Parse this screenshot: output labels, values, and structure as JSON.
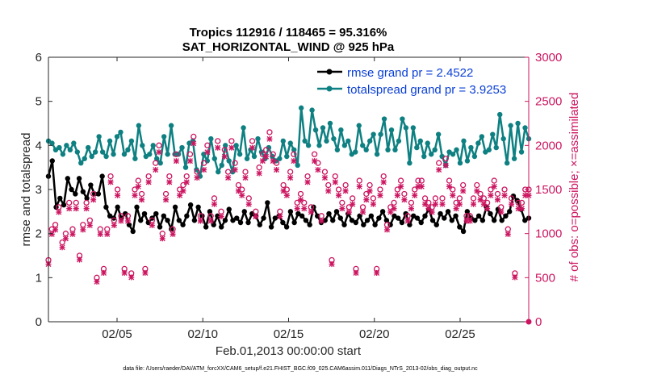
{
  "chart_data": {
    "type": "line",
    "title": [
      "Tropics 112916 / 118465 = 95.316%",
      "SAT_HORIZONTAL_WIND @ 925 hPa"
    ],
    "xlabel": "Feb.01,2013 00:00:00 start",
    "ylabel_left": "rmse and totalspread",
    "ylabel_right": "# of obs: o=possible; ×=assimilated",
    "xlim": [
      1,
      29
    ],
    "ylim_left": [
      0,
      6
    ],
    "ylim_right": [
      0,
      3000
    ],
    "x_ticks": [
      5,
      10,
      15,
      20,
      25
    ],
    "x_tick_labels": [
      "02/05",
      "02/10",
      "02/15",
      "02/20",
      "02/25"
    ],
    "y_left_ticks": [
      "0",
      "1",
      "2",
      "3",
      "4",
      "5",
      "6"
    ],
    "y_right_ticks": [
      "0",
      "500",
      "1000",
      "1500",
      "2000",
      "2500",
      "3000"
    ],
    "footnote": "data file: /Users/raeder/DAI/ATM_forcXX/CAM6_setup/f.e21.FHIST_BGC.f09_025.CAM6assim.011/Diags_NTrS_2013-02/obs_diag_output.nc",
    "colors": {
      "rmse": "#000000",
      "spread": "#0f8082",
      "obs": "#cc1560",
      "legend_text": "#0a3fd6"
    },
    "series": [
      {
        "name": "rmse grand pr = 2.4522",
        "axis": "left",
        "values": [
          3.3,
          3.65,
          2.6,
          2.8,
          2.65,
          3.25,
          3.0,
          2.9,
          3.25,
          2.95,
          2.8,
          3.1,
          2.9,
          2.9,
          3.3,
          2.6,
          2.4,
          2.35,
          2.6,
          2.35,
          2.45,
          2.2,
          2.05,
          2.6,
          2.3,
          2.45,
          2.25,
          2.35,
          2.45,
          2.15,
          2.4,
          2.3,
          2.1,
          2.6,
          2.3,
          2.2,
          2.4,
          2.65,
          2.3,
          2.6,
          2.4,
          2.15,
          2.5,
          2.2,
          2.4,
          2.15,
          2.3,
          2.55,
          2.3,
          2.35,
          2.25,
          2.5,
          2.25,
          2.45,
          2.4,
          2.2,
          2.35,
          2.7,
          2.15,
          2.35,
          2.4,
          2.25,
          2.15,
          2.5,
          2.25,
          2.45,
          2.4,
          2.3,
          2.2,
          2.6,
          2.4,
          2.25,
          2.3,
          2.45,
          2.3,
          2.5,
          2.35,
          2.2,
          2.45,
          2.3,
          2.25,
          2.4,
          2.2,
          2.3,
          2.4,
          2.2,
          2.35,
          2.5,
          2.3,
          2.2,
          2.4,
          2.35,
          2.25,
          2.45,
          2.2,
          2.4,
          2.35,
          2.25,
          2.4,
          2.55,
          2.3,
          2.2,
          2.45,
          2.35,
          2.5,
          2.3,
          2.4,
          2.15,
          2.05,
          2.5,
          2.35,
          2.3,
          2.4,
          2.3,
          2.6,
          2.45,
          2.3,
          2.55,
          2.3,
          2.4,
          2.5,
          2.85,
          2.75,
          2.55,
          2.3,
          2.35
        ]
      },
      {
        "name": "totalspread grand pr = 3.9253",
        "axis": "left",
        "values": [
          4.1,
          4.05,
          3.9,
          3.95,
          3.8,
          4.0,
          3.9,
          4.05,
          3.85,
          3.6,
          3.7,
          3.95,
          3.75,
          3.85,
          4.2,
          3.85,
          3.75,
          4.1,
          3.8,
          4.2,
          4.3,
          3.8,
          3.9,
          4.1,
          3.7,
          4.45,
          4.0,
          3.75,
          3.8,
          4.0,
          3.7,
          3.6,
          4.2,
          3.8,
          4.45,
          3.8,
          3.8,
          3.95,
          3.5,
          4.05,
          4.1,
          3.45,
          3.3,
          3.8,
          3.65,
          4.15,
          3.7,
          3.4,
          3.55,
          4.0,
          3.65,
          3.4,
          4.0,
          3.8,
          4.4,
          3.7,
          3.9,
          3.75,
          4.15,
          3.85,
          3.7,
          3.95,
          3.75,
          3.65,
          3.7,
          4.1,
          3.75,
          4.05,
          3.9,
          3.55,
          4.85,
          4.1,
          4.0,
          4.8,
          4.35,
          4.0,
          4.4,
          4.1,
          4.5,
          4.15,
          3.9,
          4.35,
          4.0,
          4.1,
          3.8,
          3.85,
          4.45,
          4.0,
          3.9,
          4.1,
          4.25,
          3.8,
          4.25,
          4.6,
          3.9,
          4.35,
          3.9,
          4.1,
          4.6,
          4.4,
          3.6,
          4.4,
          3.95,
          4.1,
          3.75,
          4.05,
          3.8,
          3.9,
          4.25,
          3.75,
          3.55,
          3.85,
          3.8,
          3.9,
          3.6,
          4.1,
          3.65,
          3.95,
          3.75,
          4.05,
          4.2,
          3.85,
          3.9,
          4.25,
          3.95,
          4.7,
          4.15,
          3.6,
          4.45,
          3.7,
          4.5,
          3.85,
          4.4,
          4.15
        ]
      },
      {
        "name": "possible",
        "axis": "right",
        "marker": "o",
        "values": [
          700,
          1050,
          1100,
          1300,
          900,
          1000,
          1350,
          1050,
          1350,
          750,
          1100,
          1350,
          1150,
          1450,
          500,
          1050,
          600,
          1050,
          1650,
          1150,
          1500,
          1200,
          600,
          1200,
          550,
          1500,
          1600,
          1450,
          600,
          1650,
          1150,
          1800,
          2000,
          1000,
          1450,
          1650,
          1050,
          1900,
          1500,
          1550,
          1650,
          1900,
          2100,
          1700,
          1200,
          1800,
          2000,
          1200,
          1400,
          2050,
          1250,
          1950,
          1700,
          2050,
          1800,
          1550,
          1500,
          1700,
          1400,
          2050,
          1250,
          1750,
          1900,
          1950,
          2150,
          1900,
          1800,
          1250,
          1550,
          1500,
          1700,
          1900,
          1350,
          1450,
          1350,
          1650,
          1300,
          1900,
          1800,
          1200,
          1700,
          1550,
          700,
          1650,
          1500,
          1350,
          1550,
          1300,
          1400,
          600,
          1600,
          1300,
          1450,
          1550,
          1400,
          600,
          1500,
          1650,
          1100,
          1300,
          1350,
          1500,
          1600,
          1450,
          1200,
          1350,
          1500,
          1600,
          1600,
          1400,
          1350,
          1300,
          1400,
          1800,
          1400,
          1850,
          1600,
          1500,
          1350,
          1400,
          1550,
          1200,
          1200,
          1400,
          1550,
          1450,
          1400,
          1350,
          1500,
          1600,
          1450,
          1300,
          1500,
          1050,
          1400,
          550,
          1350,
          1350,
          1500,
          1500
        ]
      },
      {
        "name": "assimilated",
        "axis": "right",
        "marker": "x",
        "values": [
          690,
          1030,
          1080,
          1280,
          880,
          980,
          1320,
          1030,
          1320,
          740,
          1080,
          1320,
          1130,
          1420,
          490,
          1030,
          590,
          1030,
          1620,
          1130,
          1470,
          1180,
          590,
          1180,
          540,
          1470,
          1570,
          1420,
          590,
          1620,
          1130,
          1760,
          1960,
          980,
          1420,
          1620,
          1030,
          1860,
          1470,
          1520,
          1620,
          1860,
          2060,
          1670,
          1180,
          1760,
          1960,
          1180,
          1370,
          2010,
          1230,
          1910,
          1670,
          2010,
          1760,
          1520,
          1470,
          1670,
          1370,
          2010,
          1230,
          1720,
          1860,
          1910,
          2110,
          1860,
          1760,
          1230,
          1520,
          1470,
          1670,
          1860,
          1320,
          1420,
          1320,
          1620,
          1280,
          1860,
          1760,
          1180,
          1670,
          1520,
          690,
          1620,
          1470,
          1320,
          1520,
          1280,
          1370,
          590,
          1570,
          1280,
          1420,
          1520,
          1370,
          590,
          1470,
          1620,
          1080,
          1280,
          1320,
          1470,
          1570,
          1420,
          1180,
          1320,
          1470,
          1570,
          1570,
          1370,
          1320,
          1280,
          1370,
          1760,
          1370,
          1810,
          1570,
          1470,
          1320,
          1370,
          1520,
          1180,
          1180,
          1370,
          1520,
          1420,
          1370,
          1320,
          1470,
          1570,
          1420,
          1280,
          1470,
          1030,
          1370,
          540,
          1320,
          1320,
          1470,
          1470
        ]
      }
    ],
    "legend": [
      "rmse grand pr = 2.4522",
      "totalspread grand pr = 3.9253"
    ],
    "legend_location": "top-right",
    "grid": false
  }
}
